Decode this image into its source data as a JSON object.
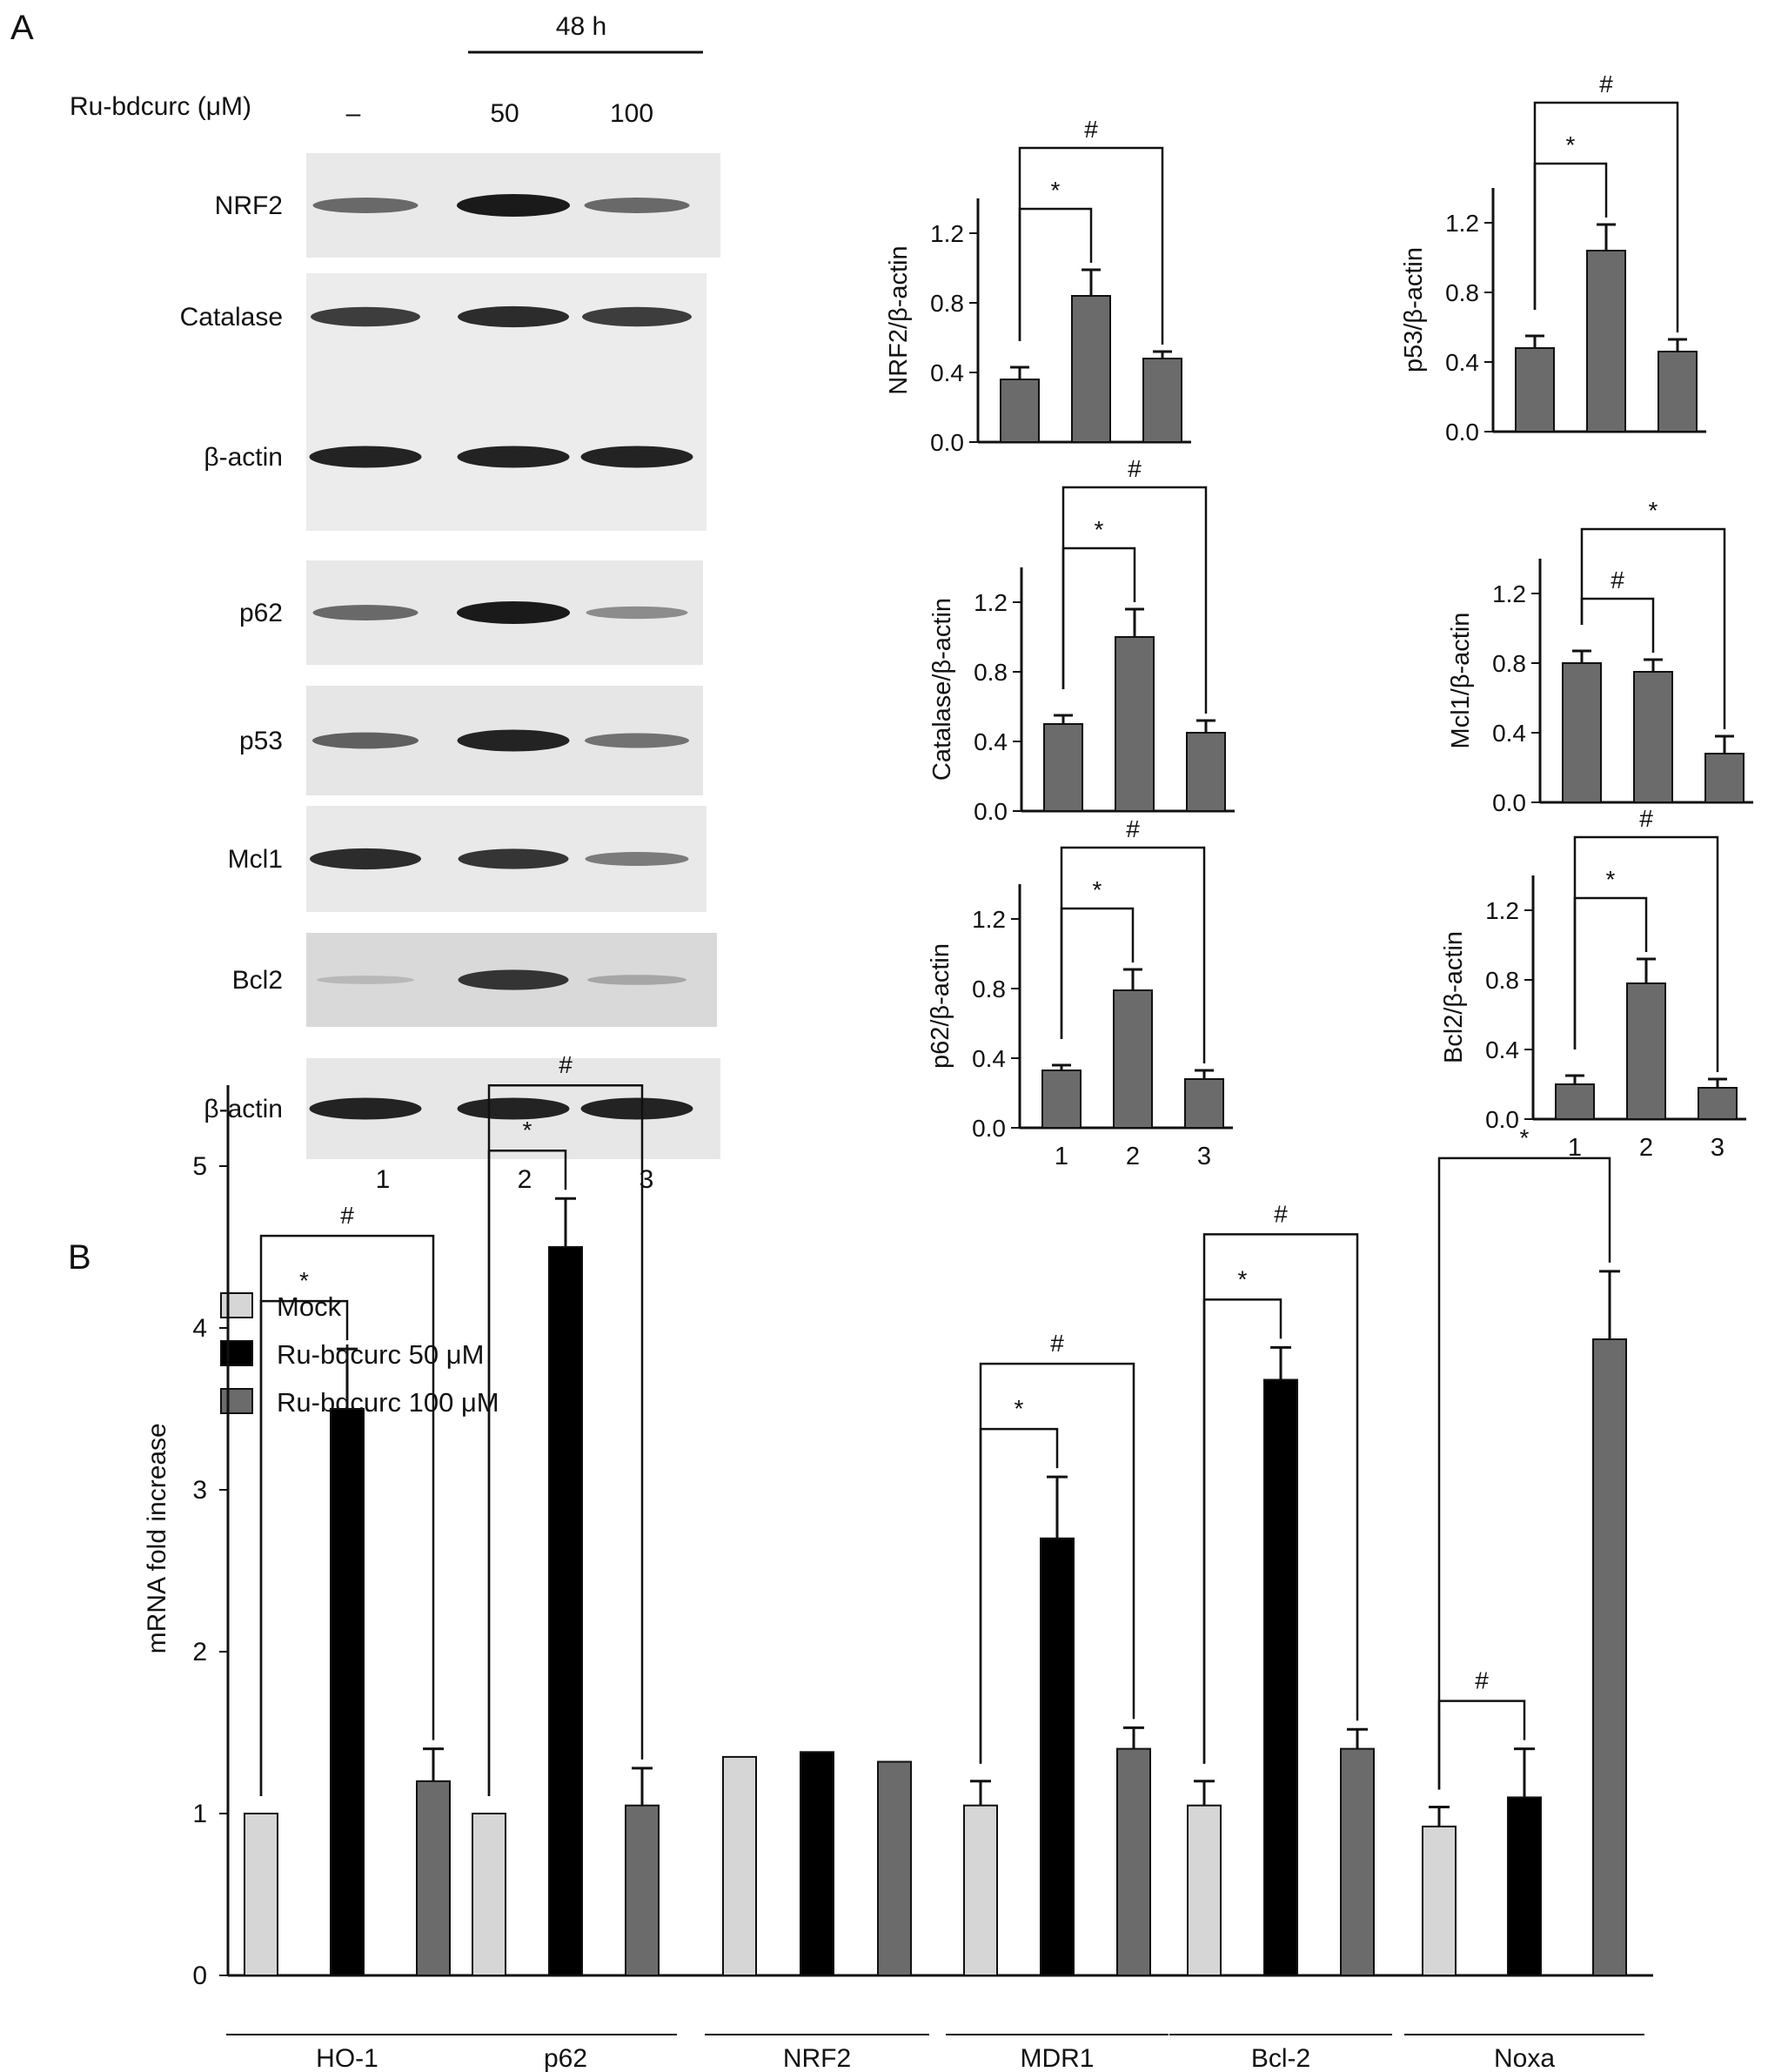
{
  "panel_labels": {
    "a": "A",
    "b": "B"
  },
  "blot": {
    "time_label": "48 h",
    "treatment_label": "Ru-bdcurc (μM)",
    "doses": [
      "–",
      "50",
      "100"
    ],
    "lane_numbers": [
      "1",
      "2",
      "3"
    ],
    "rows": [
      {
        "label": "NRF2",
        "intensity": [
          0.55,
          1.0,
          0.55
        ]
      },
      {
        "label": "Catalase",
        "intensity": [
          0.8,
          0.9,
          0.8
        ]
      },
      {
        "label": "β-actin",
        "intensity": [
          0.95,
          0.95,
          0.95
        ]
      },
      {
        "label": "p62",
        "intensity": [
          0.55,
          1.0,
          0.35
        ]
      },
      {
        "label": "p53",
        "intensity": [
          0.6,
          0.95,
          0.5
        ]
      },
      {
        "label": "Mcl1",
        "intensity": [
          0.9,
          0.85,
          0.45
        ]
      },
      {
        "label": "Bcl2",
        "intensity": [
          0.1,
          0.85,
          0.2
        ]
      },
      {
        "label": "β-actin",
        "intensity": [
          0.95,
          0.95,
          0.95
        ]
      }
    ]
  },
  "colors": {
    "bar_gray": "#6b6b6b",
    "mock": "#d6d6d6",
    "dose50": "#000000",
    "dose100": "#6b6b6b"
  },
  "chart_data": [
    {
      "type": "bar",
      "ylabel": "NRF2/β-actin",
      "categories": [
        "1",
        "2",
        "3"
      ],
      "values": [
        0.36,
        0.84,
        0.48
      ],
      "errors": [
        0.07,
        0.15,
        0.04
      ],
      "ylim": [
        0,
        1.4
      ],
      "yticks": [
        "0.0",
        "0.4",
        "0.8",
        "1.2"
      ],
      "annotations": [
        {
          "text": "*",
          "from": 1,
          "to": 2
        },
        {
          "text": "#",
          "from": 1,
          "to": 3
        }
      ]
    },
    {
      "type": "bar",
      "ylabel": "p53/β-actin",
      "categories": [
        "1",
        "2",
        "3"
      ],
      "values": [
        0.48,
        1.04,
        0.46
      ],
      "errors": [
        0.07,
        0.15,
        0.07
      ],
      "ylim": [
        0,
        1.4
      ],
      "yticks": [
        "0.0",
        "0.4",
        "0.8",
        "1.2"
      ],
      "annotations": [
        {
          "text": "*",
          "from": 1,
          "to": 2
        },
        {
          "text": "#",
          "from": 1,
          "to": 3
        }
      ]
    },
    {
      "type": "bar",
      "ylabel": "Catalase/β-actin",
      "categories": [
        "1",
        "2",
        "3"
      ],
      "values": [
        0.5,
        1.0,
        0.45
      ],
      "errors": [
        0.05,
        0.16,
        0.07
      ],
      "ylim": [
        0,
        1.4
      ],
      "yticks": [
        "0.0",
        "0.4",
        "0.8",
        "1.2"
      ],
      "annotations": [
        {
          "text": "*",
          "from": 1,
          "to": 2
        },
        {
          "text": "#",
          "from": 1,
          "to": 3
        }
      ]
    },
    {
      "type": "bar",
      "ylabel": "Mcl1/β-actin",
      "categories": [
        "1",
        "2",
        "3"
      ],
      "values": [
        0.8,
        0.75,
        0.28
      ],
      "errors": [
        0.07,
        0.07,
        0.1
      ],
      "ylim": [
        0,
        1.4
      ],
      "yticks": [
        "0.0",
        "0.4",
        "0.8",
        "1.2"
      ],
      "annotations": [
        {
          "text": "#",
          "from": 1,
          "to": 2
        },
        {
          "text": "*",
          "from": 1,
          "to": 3
        }
      ]
    },
    {
      "type": "bar",
      "ylabel": "p62/β-actin",
      "categories": [
        "1",
        "2",
        "3"
      ],
      "values": [
        0.33,
        0.79,
        0.28
      ],
      "errors": [
        0.03,
        0.12,
        0.05
      ],
      "ylim": [
        0,
        1.4
      ],
      "yticks": [
        "0.0",
        "0.4",
        "0.8",
        "1.2"
      ],
      "annotations": [
        {
          "text": "*",
          "from": 1,
          "to": 2
        },
        {
          "text": "#",
          "from": 1,
          "to": 3
        }
      ]
    },
    {
      "type": "bar",
      "ylabel": "Bcl2/β-actin",
      "categories": [
        "1",
        "2",
        "3"
      ],
      "values": [
        0.2,
        0.78,
        0.18
      ],
      "errors": [
        0.05,
        0.14,
        0.05
      ],
      "ylim": [
        0,
        1.4
      ],
      "yticks": [
        "0.0",
        "0.4",
        "0.8",
        "1.2"
      ],
      "annotations": [
        {
          "text": "*",
          "from": 1,
          "to": 2
        },
        {
          "text": "#",
          "from": 1,
          "to": 3
        }
      ]
    },
    {
      "type": "bar",
      "ylabel": "mRNA fold increase",
      "ylim": [
        0,
        5.5
      ],
      "yticks": [
        "0",
        "1",
        "2",
        "3",
        "4",
        "5"
      ],
      "categories": [
        "HO-1",
        "p62",
        "NRF2",
        "MDR1",
        "Bcl-2",
        "Noxa"
      ],
      "series": [
        {
          "name": "Mock",
          "values": [
            1.0,
            1.0,
            1.35,
            1.05,
            1.05,
            0.92
          ],
          "errors": [
            0,
            0,
            0,
            0.15,
            0.15,
            0.12
          ]
        },
        {
          "name": "Ru-bdcurc 50 μM",
          "values": [
            3.5,
            4.5,
            1.38,
            2.7,
            3.68,
            1.1
          ],
          "errors": [
            0.37,
            0.3,
            0,
            0.38,
            0.2,
            0.3
          ]
        },
        {
          "name": "Ru-bdcurc 100 μM",
          "values": [
            1.2,
            1.05,
            1.32,
            1.4,
            1.4,
            3.93
          ],
          "errors": [
            0.2,
            0.23,
            0,
            0.13,
            0.12,
            0.42
          ]
        }
      ],
      "annotations": [
        {
          "group": 0,
          "text": "*",
          "from": 1,
          "to": 2
        },
        {
          "group": 0,
          "text": "#",
          "from": 1,
          "to": 3
        },
        {
          "group": 1,
          "text": "*",
          "from": 1,
          "to": 2
        },
        {
          "group": 1,
          "text": "#",
          "from": 1,
          "to": 3
        },
        {
          "group": 3,
          "text": "*",
          "from": 1,
          "to": 2
        },
        {
          "group": 3,
          "text": "#",
          "from": 1,
          "to": 3
        },
        {
          "group": 4,
          "text": "*",
          "from": 1,
          "to": 2
        },
        {
          "group": 4,
          "text": "#",
          "from": 1,
          "to": 3
        },
        {
          "group": 5,
          "text": "#",
          "from": 1,
          "to": 2
        },
        {
          "group": 5,
          "text": "*",
          "from": 1,
          "to": 3
        }
      ]
    }
  ]
}
